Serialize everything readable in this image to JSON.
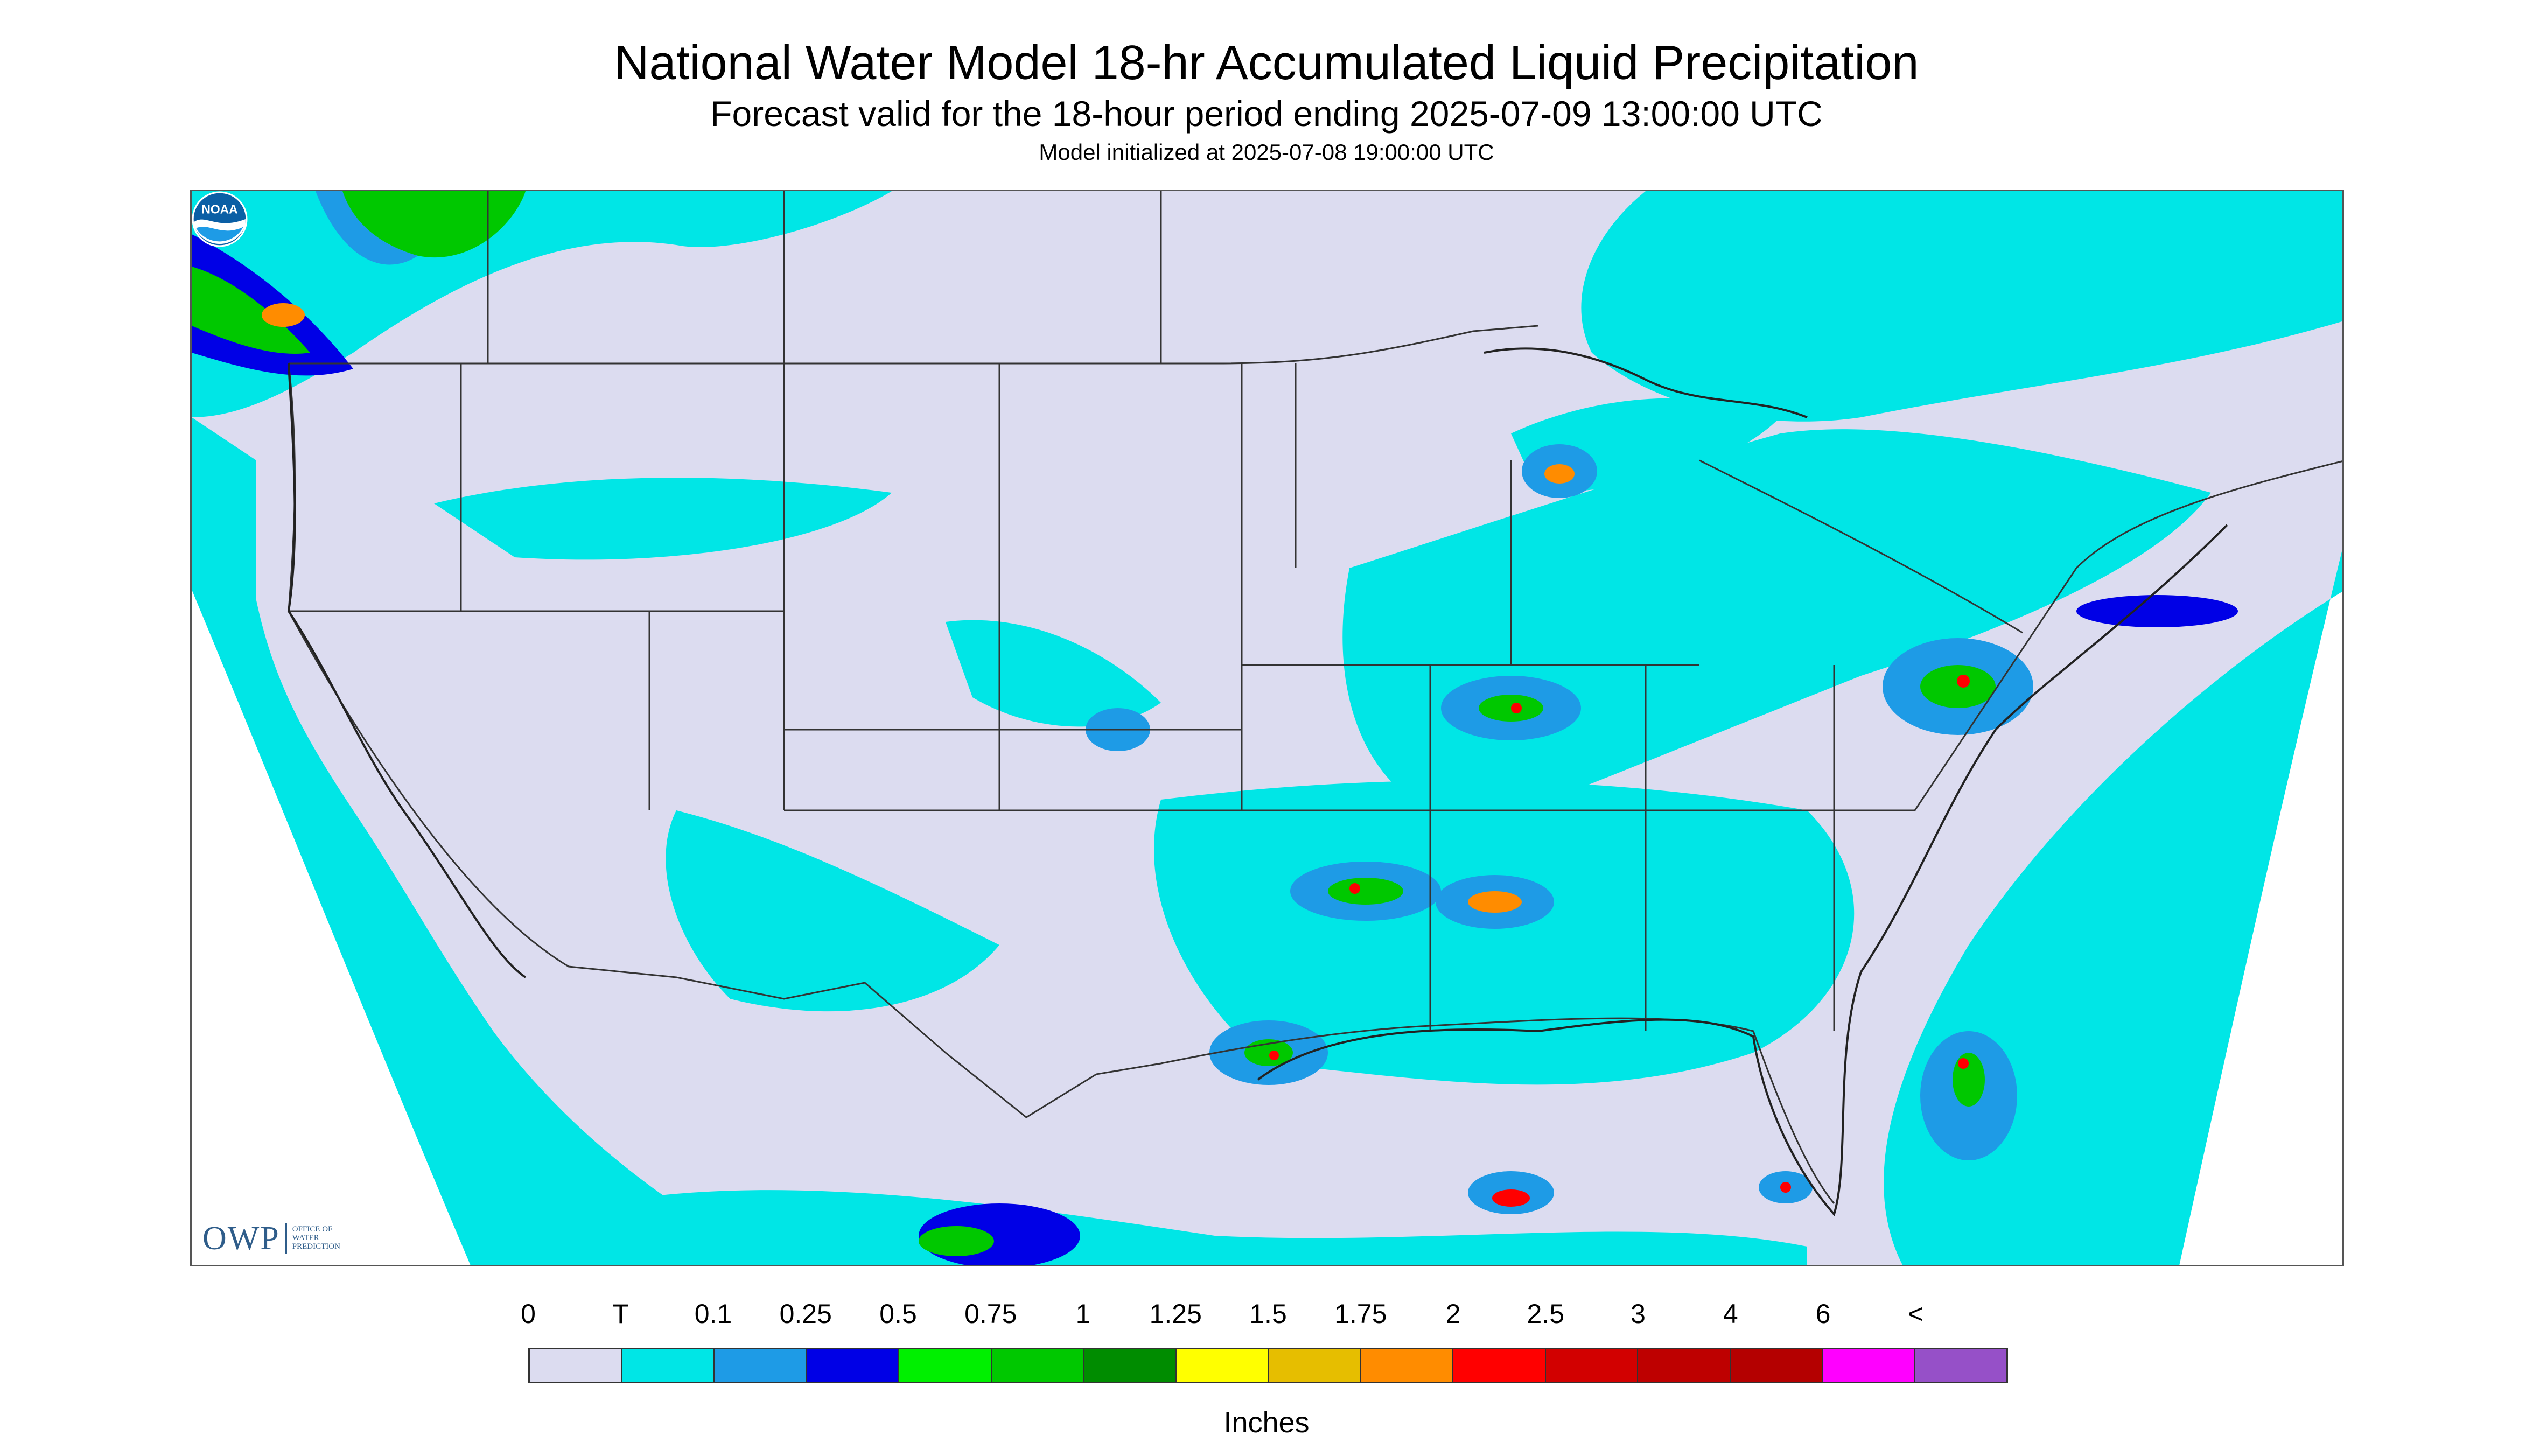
{
  "title": "National Water Model 18-hr Accumulated Liquid Precipitation",
  "subtitle": "Forecast valid for the 18-hour period ending 2025-07-09 13:00:00 UTC",
  "subtitle2": "Model initialized at 2025-07-08 19:00:00 UTC",
  "logos": {
    "owp_mark": "OWP",
    "owp_text": "Office of\nWater\nPrediction",
    "noaa_text": "NOAA"
  },
  "legend": {
    "labels": [
      "0",
      "T",
      "0.1",
      "0.25",
      "0.5",
      "0.75",
      "1",
      "1.25",
      "1.5",
      "1.75",
      "2",
      "2.5",
      "3",
      "4",
      "6",
      "<"
    ],
    "colors": [
      "#dcdcf0",
      "#00e6e6",
      "#1e9be6",
      "#0000e6",
      "#00f000",
      "#00c800",
      "#008c00",
      "#ffff00",
      "#e6be00",
      "#ff8c00",
      "#ff0000",
      "#d20000",
      "#be0000",
      "#b40000",
      "#ff00ff",
      "#9650c8"
    ],
    "units": "Inches"
  },
  "map_colors": {
    "land_none": "#dcdcf0",
    "trace": "#00e6e6",
    "light": "#1e9be6",
    "moderate": "#0000e6",
    "green": "#00c800",
    "yellow": "#ffff00",
    "orange": "#ff8c00",
    "red": "#ff0000",
    "boundary": "#333333"
  }
}
